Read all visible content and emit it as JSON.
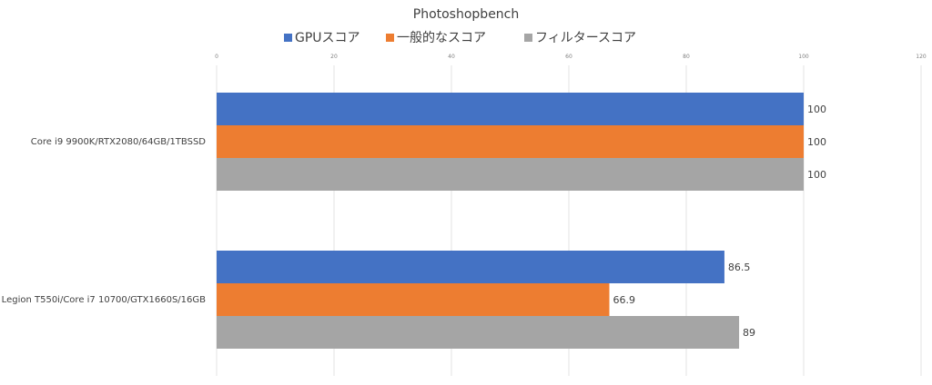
{
  "chart_data": {
    "type": "bar",
    "orientation": "horizontal",
    "title": "Photoshopbench",
    "xlim": [
      0,
      120
    ],
    "ticks": [
      0,
      20,
      40,
      60,
      80,
      100,
      120
    ],
    "grid": true,
    "legend_position": "top",
    "categories": [
      "Core i9 9900K/RTX2080/64GB/1TBSSD",
      "Legion T550i/Core i7 10700/GTX1660S/16GB"
    ],
    "series": [
      {
        "name": "GPUスコア",
        "color": "#4472C4",
        "values": [
          100,
          86.5
        ]
      },
      {
        "name": "一般的なスコア",
        "color": "#ED7D31",
        "values": [
          100,
          66.9
        ]
      },
      {
        "name": "フィルタースコア",
        "color": "#A5A5A5",
        "values": [
          100,
          89
        ]
      }
    ]
  }
}
